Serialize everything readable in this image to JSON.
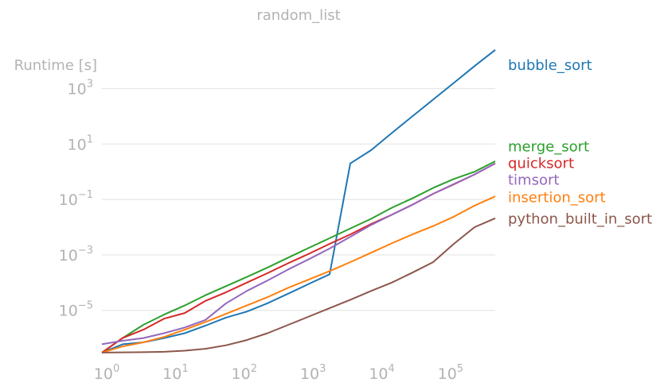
{
  "chart_data": {
    "type": "line",
    "title": "random_list",
    "ylabel": "Runtime [s]",
    "xlabel": "",
    "xscale": "log",
    "yscale": "log",
    "xlim": [
      1,
      524288
    ],
    "ylim": [
      2e-07,
      30000
    ],
    "grid": "horizontal",
    "legend": "right (labels next to line ends)",
    "x_ticks": [
      {
        "base": "10",
        "exp": "0",
        "value": 1
      },
      {
        "base": "10",
        "exp": "1",
        "value": 10
      },
      {
        "base": "10",
        "exp": "2",
        "value": 100
      },
      {
        "base": "10",
        "exp": "3",
        "value": 1000
      },
      {
        "base": "10",
        "exp": "4",
        "value": 10000
      },
      {
        "base": "10",
        "exp": "5",
        "value": 100000
      }
    ],
    "y_ticks": [
      {
        "base": "10",
        "exp": "3",
        "value": 1000
      },
      {
        "base": "10",
        "exp": "1",
        "value": 10
      },
      {
        "base": "10",
        "exp": "−1",
        "value": 0.1
      },
      {
        "base": "10",
        "exp": "−3",
        "value": 0.001
      },
      {
        "base": "10",
        "exp": "−5",
        "value": 1e-05
      }
    ],
    "x": [
      1,
      2,
      4,
      8,
      16,
      32,
      64,
      128,
      256,
      512,
      1024,
      2048,
      4096,
      8192,
      16384,
      32768,
      65536,
      131072,
      262144,
      524288
    ],
    "series": [
      {
        "name": "bubble_sort",
        "color": "#1f77b4",
        "label_y": 7000,
        "values": [
          3e-07,
          6e-07,
          7e-07,
          1e-06,
          1.5e-06,
          2.8e-06,
          5.5e-06,
          9e-06,
          1.8e-05,
          4e-05,
          9e-05,
          0.0002,
          2.0,
          6.0,
          25,
          100,
          400,
          1600,
          6500,
          25000
        ]
      },
      {
        "name": "merge_sort",
        "color": "#2ca02c",
        "label_y": 8,
        "values": [
          3e-07,
          1e-06,
          3e-06,
          7e-06,
          1.5e-05,
          3.5e-05,
          7.5e-05,
          0.00016,
          0.00035,
          0.0008,
          0.0018,
          0.004,
          0.009,
          0.02,
          0.05,
          0.11,
          0.26,
          0.55,
          1.0,
          2.4
        ]
      },
      {
        "name": "quicksort",
        "color": "#d62728",
        "label_y": 2,
        "values": [
          3e-07,
          1e-06,
          2e-06,
          5e-06,
          8e-06,
          2.2e-05,
          4.5e-05,
          0.0001,
          0.00022,
          0.0005,
          0.0011,
          0.0025,
          0.0055,
          0.013,
          0.028,
          0.065,
          0.16,
          0.35,
          0.8,
          2.0
        ]
      },
      {
        "name": "timsort",
        "color": "#9467bd",
        "label_y": 0.5,
        "values": [
          6e-07,
          8e-07,
          1e-06,
          1.5e-06,
          2.4e-06,
          4.5e-06,
          1.8e-05,
          5e-05,
          0.00012,
          0.0003,
          0.0007,
          0.0017,
          0.0045,
          0.012,
          0.028,
          0.065,
          0.16,
          0.36,
          0.8,
          2.0
        ]
      },
      {
        "name": "insertion_sort",
        "color": "#ff7f0e",
        "label_y": 0.12,
        "values": [
          3e-07,
          5e-07,
          7e-07,
          1.1e-06,
          2e-06,
          3.8e-06,
          7.5e-06,
          1.5e-05,
          3e-05,
          6.5e-05,
          0.00013,
          0.00026,
          0.00055,
          0.0012,
          0.0026,
          0.0055,
          0.011,
          0.024,
          0.06,
          0.13
        ]
      },
      {
        "name": "python_built_in_sort",
        "color": "#8c564b",
        "label_y": 0.02,
        "values": [
          3e-07,
          3.05e-07,
          3.1e-07,
          3.2e-07,
          3.5e-07,
          4.1e-07,
          5.5e-07,
          8.5e-07,
          1.5e-06,
          3e-06,
          6e-06,
          1.2e-05,
          2.4e-05,
          5e-05,
          0.0001,
          0.00023,
          0.00055,
          0.0025,
          0.01,
          0.021
        ]
      }
    ]
  }
}
